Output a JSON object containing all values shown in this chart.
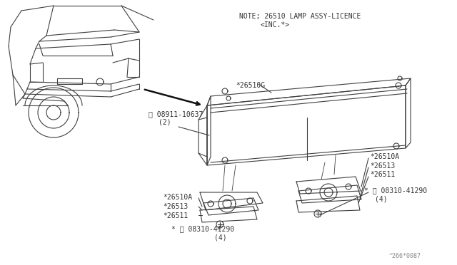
{
  "bg_color": "#ffffff",
  "line_color": "#404040",
  "title_note": "NOTE; 26510 LAMP ASSY-LICENCE",
  "title_note2": "<INC.*>",
  "watermark": "^266*0087",
  "fig_width": 6.4,
  "fig_height": 3.72,
  "dpi": 100
}
